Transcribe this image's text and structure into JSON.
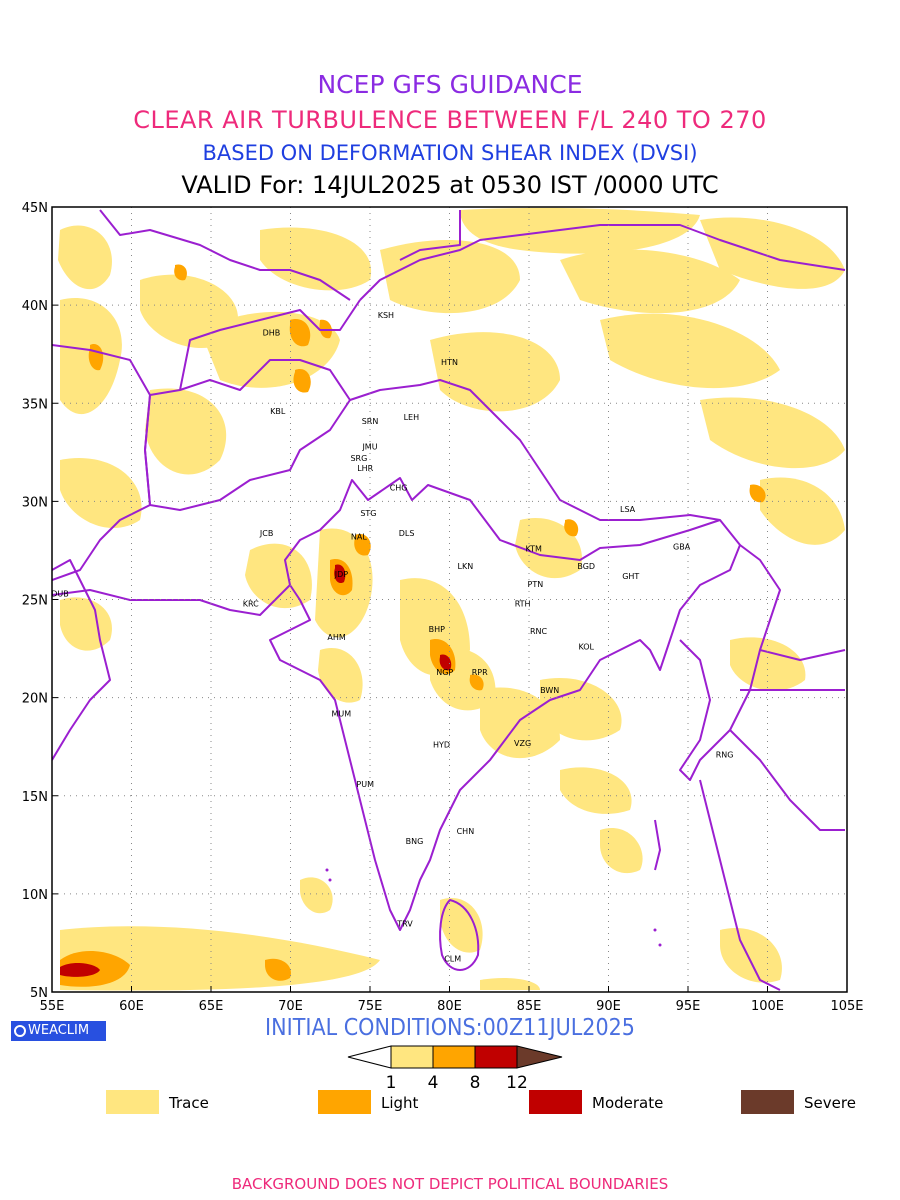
{
  "titles": {
    "line1": "NCEP GFS GUIDANCE",
    "line2": "CLEAR AIR TURBULENCE BETWEEN F/L 240 TO 270",
    "line3": "BASED ON DEFORMATION SHEAR INDEX (DVSI)",
    "line4": "VALID For: 14JUL2025 at 0530 IST /0000 UTC"
  },
  "colors": {
    "title1": "#8b2be2",
    "title2": "#ee2a7b",
    "title3": "#1f3fe0",
    "boundary": "#9b1fd0",
    "trace": "#ffe680",
    "light": "#ffa500",
    "moderate": "#c00000",
    "severe": "#6b3a2a"
  },
  "map": {
    "lat_range": [
      5,
      45
    ],
    "lon_range": [
      55,
      105
    ],
    "lat_ticks": [
      {
        "value": 5,
        "label": "5N"
      },
      {
        "value": 10,
        "label": "10N"
      },
      {
        "value": 15,
        "label": "15N"
      },
      {
        "value": 20,
        "label": "20N"
      },
      {
        "value": 25,
        "label": "25N"
      },
      {
        "value": 30,
        "label": "30N"
      },
      {
        "value": 35,
        "label": "35N"
      },
      {
        "value": 40,
        "label": "40N"
      },
      {
        "value": 45,
        "label": "45N"
      }
    ],
    "lon_ticks": [
      {
        "value": 55,
        "label": "55E"
      },
      {
        "value": 60,
        "label": "60E"
      },
      {
        "value": 65,
        "label": "65E"
      },
      {
        "value": 70,
        "label": "70E"
      },
      {
        "value": 75,
        "label": "75E"
      },
      {
        "value": 80,
        "label": "80E"
      },
      {
        "value": 85,
        "label": "85E"
      },
      {
        "value": 90,
        "label": "90E"
      },
      {
        "value": 95,
        "label": "95E"
      },
      {
        "value": 100,
        "label": "100E"
      },
      {
        "value": 105,
        "label": "105E"
      }
    ],
    "stations": [
      {
        "code": "KSH",
        "lon": 76.0,
        "lat": 39.5
      },
      {
        "code": "DHB",
        "lon": 68.8,
        "lat": 38.6
      },
      {
        "code": "HTN",
        "lon": 80.0,
        "lat": 37.1
      },
      {
        "code": "KBL",
        "lon": 69.2,
        "lat": 34.6
      },
      {
        "code": "SRN",
        "lon": 75.0,
        "lat": 34.1
      },
      {
        "code": "LEH",
        "lon": 77.6,
        "lat": 34.3
      },
      {
        "code": "JMU",
        "lon": 75.0,
        "lat": 32.8
      },
      {
        "code": "SRG",
        "lon": 74.3,
        "lat": 32.2
      },
      {
        "code": "LHR",
        "lon": 74.7,
        "lat": 31.7
      },
      {
        "code": "CHG",
        "lon": 76.8,
        "lat": 30.7
      },
      {
        "code": "STG",
        "lon": 74.9,
        "lat": 29.4
      },
      {
        "code": "LSA",
        "lon": 91.2,
        "lat": 29.6
      },
      {
        "code": "JCB",
        "lon": 68.5,
        "lat": 28.4
      },
      {
        "code": "NAL",
        "lon": 74.3,
        "lat": 28.2
      },
      {
        "code": "DLS",
        "lon": 77.3,
        "lat": 28.4
      },
      {
        "code": "KTM",
        "lon": 85.3,
        "lat": 27.6
      },
      {
        "code": "GBA",
        "lon": 94.6,
        "lat": 27.7
      },
      {
        "code": "BGD",
        "lon": 88.6,
        "lat": 26.7
      },
      {
        "code": "GHT",
        "lon": 91.4,
        "lat": 26.2
      },
      {
        "code": "LKN",
        "lon": 81.0,
        "lat": 26.7
      },
      {
        "code": "JDP",
        "lon": 73.2,
        "lat": 26.3
      },
      {
        "code": "PTN",
        "lon": 85.4,
        "lat": 25.8
      },
      {
        "code": "DUB",
        "lon": 55.5,
        "lat": 25.3
      },
      {
        "code": "RTH",
        "lon": 84.6,
        "lat": 24.8
      },
      {
        "code": "KRC",
        "lon": 67.5,
        "lat": 24.8
      },
      {
        "code": "BHP",
        "lon": 79.2,
        "lat": 23.5
      },
      {
        "code": "RNC",
        "lon": 85.6,
        "lat": 23.4
      },
      {
        "code": "AHM",
        "lon": 72.9,
        "lat": 23.1
      },
      {
        "code": "KOL",
        "lon": 88.6,
        "lat": 22.6
      },
      {
        "code": "NGP",
        "lon": 79.7,
        "lat": 21.3
      },
      {
        "code": "RPR",
        "lon": 81.9,
        "lat": 21.3
      },
      {
        "code": "BWN",
        "lon": 86.3,
        "lat": 20.4
      },
      {
        "code": "MUM",
        "lon": 73.2,
        "lat": 19.2
      },
      {
        "code": "HYD",
        "lon": 79.5,
        "lat": 17.6
      },
      {
        "code": "VZG",
        "lon": 84.6,
        "lat": 17.7
      },
      {
        "code": "RNG",
        "lon": 97.3,
        "lat": 17.1
      },
      {
        "code": "PUM",
        "lon": 74.7,
        "lat": 15.6
      },
      {
        "code": "CHN",
        "lon": 81.0,
        "lat": 13.2
      },
      {
        "code": "BNG",
        "lon": 77.8,
        "lat": 12.7
      },
      {
        "code": "TRV",
        "lon": 77.2,
        "lat": 8.5
      },
      {
        "code": "CLM",
        "lon": 80.2,
        "lat": 6.7
      }
    ]
  },
  "badge": {
    "label": "WEACLIM",
    "icon": "circle-logo-icon"
  },
  "initial_conditions": "INITIAL CONDITIONS:00Z11JUL2025",
  "colorbar": {
    "ticks": [
      "1",
      "4",
      "8",
      "12"
    ]
  },
  "legend": [
    {
      "label": "Trace",
      "color": "#ffe680"
    },
    {
      "label": "Light",
      "color": "#ffa500"
    },
    {
      "label": "Moderate",
      "color": "#c00000"
    },
    {
      "label": "Severe",
      "color": "#6b3a2a"
    }
  ],
  "footer": "BACKGROUND DOES NOT DEPICT POLITICAL BOUNDARIES"
}
